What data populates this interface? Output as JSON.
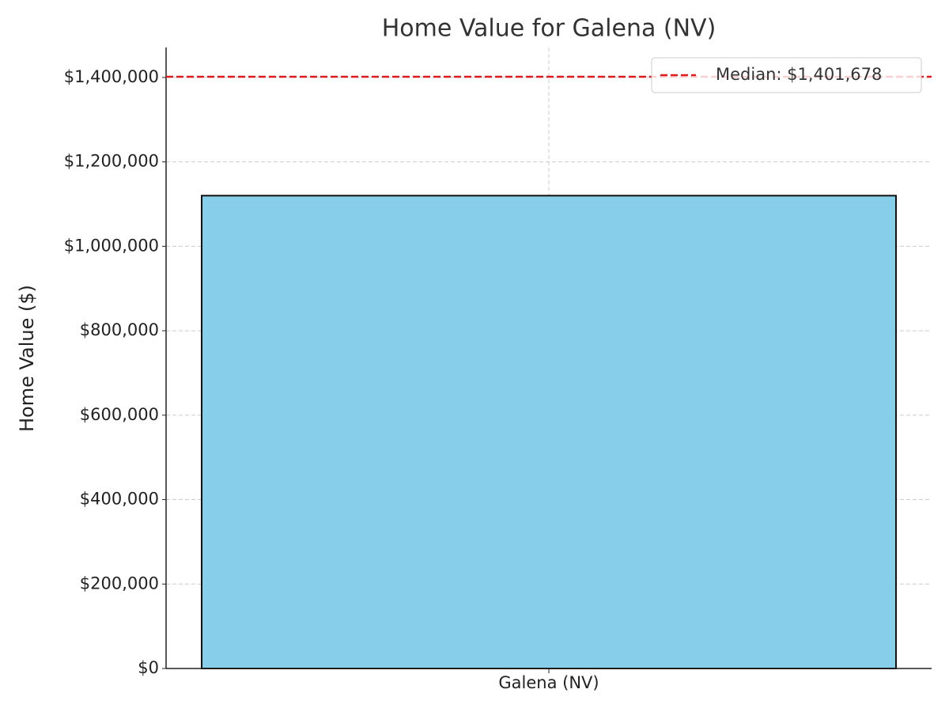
{
  "chart_data": {
    "type": "bar",
    "title": "Home Value for Galena (NV)",
    "ylabel": "Home Value ($)",
    "categories": [
      "Galena (NV)"
    ],
    "values": [
      1120000
    ],
    "color": "#87ceeb",
    "ylim": [
      0,
      1471000
    ],
    "yticks": [
      {
        "value": 0,
        "label": "$0"
      },
      {
        "value": 200000,
        "label": "$200,000"
      },
      {
        "value": 400000,
        "label": "$400,000"
      },
      {
        "value": 600000,
        "label": "$600,000"
      },
      {
        "value": 800000,
        "label": "$800,000"
      },
      {
        "value": 1000000,
        "label": "$1,000,000"
      },
      {
        "value": 1200000,
        "label": "$1,200,000"
      },
      {
        "value": 1400000,
        "label": "$1,400,000"
      }
    ],
    "grid": true,
    "median": {
      "value": 1401678,
      "label": "Median: $1,401,678",
      "color": "#e31a1c"
    },
    "legend": "upper right"
  }
}
